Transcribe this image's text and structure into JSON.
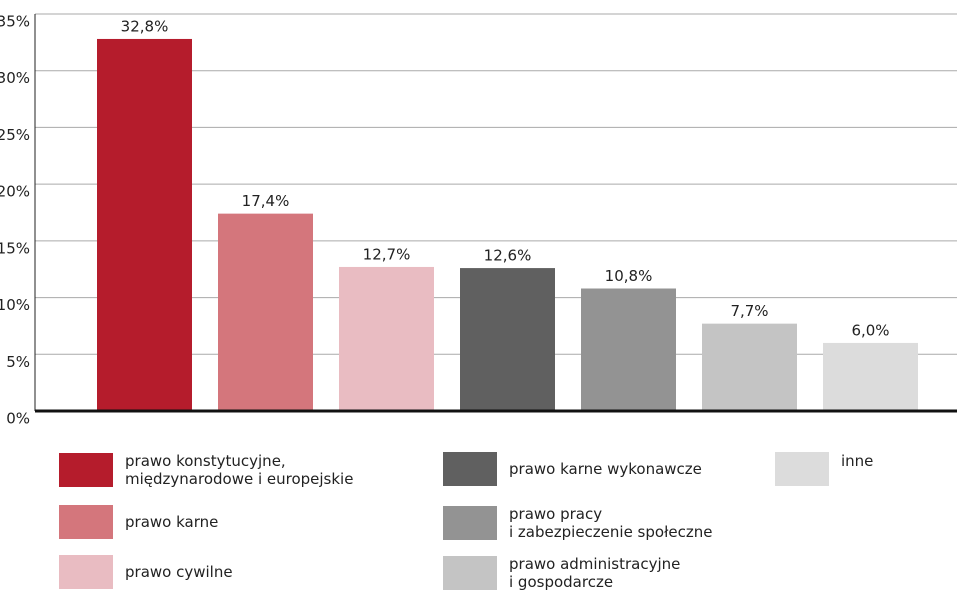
{
  "chart_data": {
    "type": "bar",
    "categories": [
      "prawo konstytucyjne,\nmiędzynarodowe i europejskie",
      "prawo karne",
      "prawo cywilne",
      "prawo karne wykonawcze",
      "prawo pracy\ni zabezpieczenie społeczne",
      "prawo administracyjne\ni gospodarcze",
      "inne"
    ],
    "values": [
      32.8,
      17.4,
      12.7,
      12.6,
      10.8,
      7.7,
      6.0
    ],
    "value_labels": [
      "32,8%",
      "17,4%",
      "12,7%",
      "12,6%",
      "10,8%",
      "7,7%",
      "6,0%"
    ],
    "colors": [
      "#b51c2c",
      "#d4767c",
      "#e9bcc2",
      "#606060",
      "#939393",
      "#c4c4c4",
      "#dcdcdc"
    ],
    "ylim": [
      0,
      35
    ],
    "yticks": [
      {
        "value": 0,
        "label": "0%"
      },
      {
        "value": 5,
        "label": "5%"
      },
      {
        "value": 10,
        "label": "10%"
      },
      {
        "value": 15,
        "label": "15%"
      },
      {
        "value": 20,
        "label": "20%"
      },
      {
        "value": 25,
        "label": "25%"
      },
      {
        "value": 30,
        "label": "30%"
      },
      {
        "value": 35,
        "label": "35%"
      }
    ],
    "grid": true
  }
}
